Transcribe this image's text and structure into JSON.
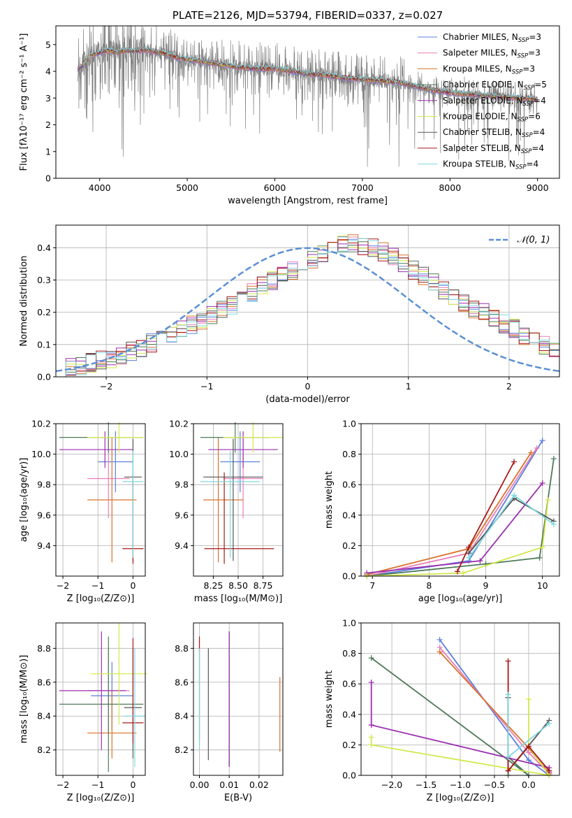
{
  "chart_data": [
    {
      "id": "spectrum",
      "type": "line",
      "title": "PLATE=2126, MJD=53794, FIBERID=0337, z=0.027",
      "xlabel": "wavelength [Angstrom, rest frame]",
      "ylabel": "Flux [fλ10⁻¹⁷ erg cm⁻² s⁻¹ A⁻¹]",
      "xlim": [
        3500,
        9250
      ],
      "ylim": [
        0,
        5.7
      ],
      "xticks": [
        4000,
        5000,
        6000,
        7000,
        8000,
        9000
      ],
      "yticks": [
        0,
        1,
        2,
        3,
        4,
        5
      ],
      "grid": false,
      "legend_position": "top-right",
      "series": [
        {
          "name": "Chabrier MILES, N_SSP=3",
          "color": "#5b7fdb"
        },
        {
          "name": "Salpeter MILES, N_SSP=3",
          "color": "#e87fb8"
        },
        {
          "name": "Kroupa MILES, N_SSP=3",
          "color": "#d9722a"
        },
        {
          "name": "Chabrier ELODIE, N_SSP=5",
          "color": "#4f7a5a"
        },
        {
          "name": "Salpeter ELODIE, N_SSP=4",
          "color": "#9b2fb0"
        },
        {
          "name": "Kroupa ELODIE, N_SSP=6",
          "color": "#d2e84a"
        },
        {
          "name": "Chabrier STELIB, N_SSP=4",
          "color": "#555555"
        },
        {
          "name": "Salpeter STELIB, N_SSP=4",
          "color": "#a81818"
        },
        {
          "name": "Kroupa STELIB, N_SSP=4",
          "color": "#7fd8e0"
        }
      ],
      "data_color": "#808080",
      "continuum": {
        "x": [
          3750,
          3800,
          3900,
          4000,
          4100,
          4200,
          4300,
          4400,
          4500,
          4600,
          4700,
          4800,
          4900,
          5000,
          5200,
          5400,
          5600,
          5800,
          6000,
          6200,
          6400,
          6600,
          6800,
          7000,
          7200,
          7400,
          7600,
          7800,
          8000,
          8200,
          8400,
          8600,
          8800,
          9000
        ],
        "y": [
          4.1,
          4.2,
          4.6,
          4.7,
          4.8,
          4.7,
          4.8,
          4.75,
          4.8,
          4.75,
          4.7,
          4.6,
          4.5,
          4.45,
          4.35,
          4.25,
          4.15,
          4.1,
          4.1,
          4.0,
          3.9,
          3.85,
          3.75,
          3.7,
          3.65,
          3.6,
          3.45,
          3.3,
          3.2,
          3.15,
          3.1,
          3.05,
          3.0,
          2.95
        ]
      },
      "notes": "noisy grey observed spectrum with overlaid model fits"
    },
    {
      "id": "residuals",
      "type": "line",
      "xlabel": "(data-model)/error",
      "ylabel": "Normed distribution",
      "xlim": [
        -2.5,
        2.5
      ],
      "ylim": [
        0,
        0.47
      ],
      "xticks": [
        -2,
        -1,
        0,
        1,
        2
      ],
      "yticks": [
        0.0,
        0.1,
        0.2,
        0.3,
        0.4
      ],
      "grid": true,
      "legend_position": "top-right",
      "reference": {
        "name": "𝒩(0, 1)",
        "mean": 0,
        "sigma": 1,
        "color": "#5b8fd6"
      },
      "bins": {
        "start": -2.5,
        "width": 0.1
      },
      "series_template": [
        0.028,
        0.032,
        0.036,
        0.043,
        0.05,
        0.057,
        0.065,
        0.078,
        0.09,
        0.105,
        0.118,
        0.132,
        0.145,
        0.16,
        0.175,
        0.19,
        0.205,
        0.222,
        0.24,
        0.262,
        0.283,
        0.3,
        0.315,
        0.33,
        0.348,
        0.365,
        0.385,
        0.4,
        0.41,
        0.412,
        0.405,
        0.398,
        0.388,
        0.372,
        0.35,
        0.33,
        0.312,
        0.292,
        0.27,
        0.25,
        0.228,
        0.212,
        0.198,
        0.18,
        0.165,
        0.15,
        0.13,
        0.11,
        0.095,
        0.08
      ]
    },
    {
      "id": "age-vs-Z",
      "type": "scatter",
      "xlabel": "Z [log₁₀(Z/Z⊙)]",
      "ylabel": "age  [log₁₀(age/yr)]",
      "xlim": [
        -2.2,
        0.35
      ],
      "ylim": [
        9.2,
        10.2
      ],
      "xticks": [
        -2,
        -1,
        0
      ],
      "yticks": [
        9.4,
        9.6,
        9.8,
        10.0,
        10.2
      ],
      "grid": true,
      "points": [
        {
          "x": -0.5,
          "y": 9.95,
          "xerr": [
            0.5,
            0.5
          ],
          "yerr": [
            0.2,
            0.2
          ],
          "color": "#5b7fdb"
        },
        {
          "x": -0.7,
          "y": 9.84,
          "xerr": [
            0.6,
            0.6
          ],
          "yerr": [
            0.26,
            0.26
          ],
          "color": "#e87fb8"
        },
        {
          "x": -0.6,
          "y": 9.7,
          "xerr": [
            0.7,
            0.7
          ],
          "yerr": [
            0.41,
            0.41
          ],
          "color": "#d9722a"
        },
        {
          "x": -0.7,
          "y": 10.11,
          "xerr": [
            1.4,
            1.0
          ],
          "yerr": [
            0.1,
            0.1
          ],
          "color": "#4f7a5a"
        },
        {
          "x": -0.8,
          "y": 10.03,
          "xerr": [
            1.3,
            0.8
          ],
          "yerr": [
            0.12,
            0.12
          ],
          "color": "#9b2fb0"
        },
        {
          "x": -0.4,
          "y": 10.11,
          "xerr": [
            0.9,
            0.7
          ],
          "yerr": [
            0.1,
            0.1
          ],
          "color": "#d2e84a"
        },
        {
          "x": 0.0,
          "y": 9.85,
          "xerr": [
            0.25,
            0.25
          ],
          "yerr": [
            0.55,
            0.25
          ],
          "color": "#555555"
        },
        {
          "x": 0.0,
          "y": 9.38,
          "xerr": [
            0.3,
            0.3
          ],
          "yerr": [
            0.1,
            0.5
          ],
          "color": "#a81818"
        },
        {
          "x": 0.0,
          "y": 9.82,
          "xerr": [
            0.3,
            0.3
          ],
          "yerr": [
            0.5,
            0.2
          ],
          "color": "#7fd8e0"
        }
      ]
    },
    {
      "id": "age-vs-mass",
      "type": "scatter",
      "xlabel": "mass [log₁₀(M/M⊙)]",
      "ylabel": "",
      "xlim": [
        8.05,
        8.95
      ],
      "ylim": [
        9.2,
        10.2
      ],
      "xticks": [
        8.25,
        8.5,
        8.75
      ],
      "yticks": [
        9.4,
        9.6,
        9.8,
        10.0,
        10.2
      ],
      "grid": true,
      "points": [
        {
          "x": 8.52,
          "y": 9.95,
          "xerr": [
            0.2,
            0.2
          ],
          "yerr": [
            0.2,
            0.2
          ],
          "color": "#5b7fdb"
        },
        {
          "x": 8.55,
          "y": 9.84,
          "xerr": [
            0.2,
            0.2
          ],
          "yerr": [
            0.26,
            0.26
          ],
          "color": "#e87fb8"
        },
        {
          "x": 8.3,
          "y": 9.7,
          "xerr": [
            0.15,
            0.25
          ],
          "yerr": [
            0.41,
            0.41
          ],
          "color": "#d9722a"
        },
        {
          "x": 8.47,
          "y": 10.11,
          "xerr": [
            0.35,
            0.35
          ],
          "yerr": [
            0.1,
            0.1
          ],
          "color": "#4f7a5a"
        },
        {
          "x": 8.55,
          "y": 10.03,
          "xerr": [
            0.35,
            0.35
          ],
          "yerr": [
            0.12,
            0.12
          ],
          "color": "#9b2fb0"
        },
        {
          "x": 8.65,
          "y": 10.11,
          "xerr": [
            0.3,
            0.3
          ],
          "yerr": [
            0.1,
            0.1
          ],
          "color": "#d2e84a"
        },
        {
          "x": 8.45,
          "y": 9.85,
          "xerr": [
            0.3,
            0.3
          ],
          "yerr": [
            0.55,
            0.25
          ],
          "color": "#555555"
        },
        {
          "x": 8.36,
          "y": 9.38,
          "xerr": [
            0.2,
            0.5
          ],
          "yerr": [
            0.1,
            0.5
          ],
          "color": "#a81818"
        },
        {
          "x": 8.42,
          "y": 9.82,
          "xerr": [
            0.3,
            0.3
          ],
          "yerr": [
            0.5,
            0.2
          ],
          "color": "#7fd8e0"
        }
      ]
    },
    {
      "id": "mass-weight-vs-age",
      "type": "line",
      "xlabel": "age  [log₁₀(age/yr)]",
      "ylabel": "mass weight",
      "xlim": [
        6.8,
        10.3
      ],
      "ylim": [
        0,
        1.0
      ],
      "xticks": [
        7,
        8,
        9,
        10
      ],
      "yticks": [
        0.0,
        0.2,
        0.4,
        0.6,
        0.8,
        1.0
      ],
      "grid": true,
      "series": [
        {
          "color": "#5b7fdb",
          "x": [
            6.9,
            8.7,
            10.0
          ],
          "y": [
            0.0,
            0.1,
            0.89
          ]
        },
        {
          "color": "#e87fb8",
          "x": [
            6.9,
            8.7,
            9.9
          ],
          "y": [
            0.0,
            0.15,
            0.84
          ]
        },
        {
          "color": "#d9722a",
          "x": [
            6.9,
            8.7,
            9.8
          ],
          "y": [
            0.01,
            0.18,
            0.81
          ]
        },
        {
          "color": "#4f7a5a",
          "x": [
            6.9,
            9.0,
            9.95,
            10.2
          ],
          "y": [
            0.0,
            0.08,
            0.12,
            0.77
          ]
        },
        {
          "color": "#9b2fb0",
          "x": [
            6.9,
            8.9,
            10.0
          ],
          "y": [
            0.02,
            0.1,
            0.61
          ]
        },
        {
          "color": "#d2e84a",
          "x": [
            6.9,
            8.6,
            10.0,
            10.1
          ],
          "y": [
            0.0,
            0.02,
            0.19,
            0.5
          ]
        },
        {
          "color": "#555555",
          "x": [
            8.7,
            9.5,
            10.2
          ],
          "y": [
            0.15,
            0.51,
            0.36
          ]
        },
        {
          "color": "#a81818",
          "x": [
            8.5,
            8.7,
            9.5
          ],
          "y": [
            0.03,
            0.19,
            0.75
          ]
        },
        {
          "color": "#7fd8e0",
          "x": [
            8.7,
            9.5,
            10.2
          ],
          "y": [
            0.12,
            0.53,
            0.34
          ]
        }
      ]
    },
    {
      "id": "mass-vs-Z",
      "type": "scatter",
      "xlabel": "Z [log₁₀(Z/Z⊙)]",
      "ylabel": "mass [log₁₀(M/M⊙)]",
      "xlim": [
        -2.2,
        0.35
      ],
      "ylim": [
        8.05,
        8.95
      ],
      "xticks": [
        -2,
        -1,
        0
      ],
      "yticks": [
        8.2,
        8.4,
        8.6,
        8.8
      ],
      "grid": true,
      "points": [
        {
          "x": -0.6,
          "y": 8.52,
          "xerr": [
            0.6,
            0.6
          ],
          "yerr": [
            0.2,
            0.2
          ],
          "color": "#5b7fdb"
        },
        {
          "x": -0.7,
          "y": 8.55,
          "xerr": [
            0.6,
            0.6
          ],
          "yerr": [
            0.25,
            0.25
          ],
          "color": "#e87fb8"
        },
        {
          "x": -0.6,
          "y": 8.3,
          "xerr": [
            0.7,
            0.7
          ],
          "yerr": [
            0.15,
            0.25
          ],
          "color": "#d9722a"
        },
        {
          "x": -0.7,
          "y": 8.47,
          "xerr": [
            1.4,
            1.0
          ],
          "yerr": [
            0.4,
            0.4
          ],
          "color": "#4f7a5a"
        },
        {
          "x": -0.9,
          "y": 8.55,
          "xerr": [
            1.2,
            0.7
          ],
          "yerr": [
            0.35,
            0.35
          ],
          "color": "#9b2fb0"
        },
        {
          "x": -0.4,
          "y": 8.65,
          "xerr": [
            0.8,
            0.8
          ],
          "yerr": [
            0.3,
            0.3
          ],
          "color": "#d2e84a"
        },
        {
          "x": 0.0,
          "y": 8.45,
          "xerr": [
            0.25,
            0.25
          ],
          "yerr": [
            0.3,
            0.35
          ],
          "color": "#555555"
        },
        {
          "x": 0.0,
          "y": 8.36,
          "xerr": [
            0.3,
            0.3
          ],
          "yerr": [
            0.12,
            0.5
          ],
          "color": "#a81818"
        },
        {
          "x": 0.05,
          "y": 8.4,
          "xerr": [
            0.3,
            0.3
          ],
          "yerr": [
            0.3,
            0.4
          ],
          "color": "#7fd8e0"
        }
      ]
    },
    {
      "id": "mass-vs-ebv",
      "type": "scatter",
      "xlabel": "E(B-V)",
      "ylabel": "",
      "xlim": [
        -0.002,
        0.028
      ],
      "ylim": [
        8.05,
        8.95
      ],
      "xticks": [
        0.0,
        0.01,
        0.02
      ],
      "yticks": [
        8.2,
        8.4,
        8.6,
        8.8
      ],
      "grid": true,
      "points": [
        {
          "x": 0.0,
          "y": 8.52,
          "yerr": [
            0.25,
            0.25
          ],
          "color": "#5b7fdb"
        },
        {
          "x": 0.0,
          "y": 8.55,
          "yerr": [
            0.3,
            0.3
          ],
          "color": "#e87fb8"
        },
        {
          "x": 0.027,
          "y": 8.41,
          "yerr": [
            0.22,
            0.22
          ],
          "color": "#d9722a"
        },
        {
          "x": 0.01,
          "y": 8.5,
          "yerr": [
            0.4,
            0.4
          ],
          "color": "#4f7a5a"
        },
        {
          "x": 0.01,
          "y": 8.5,
          "yerr": [
            0.4,
            0.4
          ],
          "color": "#9b2fb0"
        },
        {
          "x": 0.0,
          "y": 8.5,
          "yerr": [
            0.3,
            0.3
          ],
          "color": "#d2e84a"
        },
        {
          "x": 0.003,
          "y": 8.47,
          "yerr": [
            0.33,
            0.33
          ],
          "color": "#555555"
        },
        {
          "x": 0.0,
          "y": 8.82,
          "yerr": [
            0.05,
            0.05
          ],
          "color": "#a81818"
        },
        {
          "x": 0.0,
          "y": 8.5,
          "yerr": [
            0.3,
            0.3
          ],
          "color": "#7fd8e0"
        }
      ]
    },
    {
      "id": "mass-weight-vs-Z",
      "type": "line",
      "xlabel": "Z [log₁₀(Z/Z⊙)]",
      "ylabel": "mass weight",
      "xlim": [
        -2.45,
        0.45
      ],
      "ylim": [
        0,
        1.0
      ],
      "xticks": [
        -2.0,
        -1.5,
        -1.0,
        -0.5,
        0.0
      ],
      "yticks": [
        0.0,
        0.2,
        0.4,
        0.6,
        0.8,
        1.0
      ],
      "grid": true,
      "series": [
        {
          "color": "#5b7fdb",
          "x": [
            -1.3,
            0.0,
            0.3
          ],
          "y": [
            0.89,
            0.1,
            0.0
          ]
        },
        {
          "color": "#e87fb8",
          "x": [
            -1.3,
            0.0,
            0.3
          ],
          "y": [
            0.84,
            0.15,
            0.01
          ]
        },
        {
          "color": "#d9722a",
          "x": [
            -1.3,
            0.0,
            0.3
          ],
          "y": [
            0.81,
            0.18,
            0.01
          ]
        },
        {
          "color": "#4f7a5a",
          "x": [
            -2.3,
            0.0,
            -0.3,
            -0.3
          ],
          "y": [
            0.77,
            0.0,
            0.12,
            0.0
          ]
        },
        {
          "color": "#9b2fb0",
          "x": [
            -2.3,
            -2.3,
            0.3,
            0.3
          ],
          "y": [
            0.61,
            0.33,
            0.05,
            0.02
          ]
        },
        {
          "color": "#d2e84a",
          "x": [
            -2.3,
            -2.3,
            0.3,
            0.0,
            0.0
          ],
          "y": [
            0.25,
            0.2,
            0.0,
            0.19,
            0.5
          ]
        },
        {
          "color": "#555555",
          "x": [
            -0.3,
            -0.3,
            0.3
          ],
          "y": [
            0.51,
            0.03,
            0.36
          ]
        },
        {
          "color": "#a81818",
          "x": [
            -0.3,
            -0.3,
            0.0,
            0.3
          ],
          "y": [
            0.75,
            0.03,
            0.19,
            0.03
          ]
        },
        {
          "color": "#7fd8e0",
          "x": [
            -0.3,
            -0.3,
            0.3
          ],
          "y": [
            0.53,
            0.12,
            0.34
          ]
        }
      ]
    }
  ]
}
